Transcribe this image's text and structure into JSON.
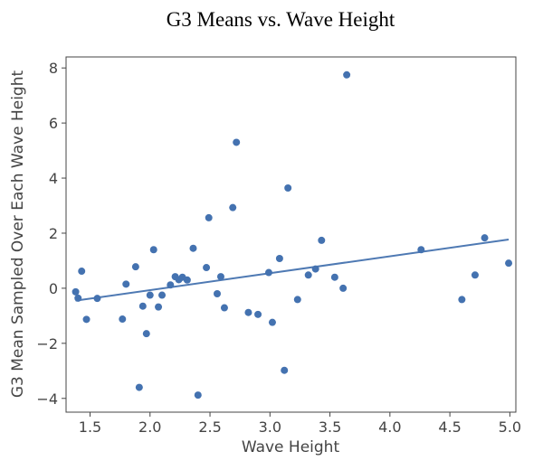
{
  "chart_data": {
    "type": "scatter",
    "title": "G3 Means vs. Wave Height",
    "xlabel": "Wave Height",
    "ylabel": "G3 Mean Sampled Over Each Wave Height",
    "xlim": [
      1.3,
      5.05
    ],
    "ylim": [
      -4.5,
      8.4
    ],
    "xticks": [
      1.5,
      2.0,
      2.5,
      3.0,
      3.5,
      4.0,
      4.5,
      5.0
    ],
    "xtick_labels": [
      "1.5",
      "2.0",
      "2.5",
      "3.0",
      "3.5",
      "4.0",
      "4.5",
      "5.0"
    ],
    "yticks": [
      -4,
      -2,
      0,
      2,
      4,
      6,
      8
    ],
    "ytick_labels": [
      "−4",
      "−2",
      "0",
      "2",
      "4",
      "6",
      "8"
    ],
    "grid": false,
    "point_color": "#4472b0",
    "trend_color": "#4e79b3",
    "series": [
      {
        "points": [
          {
            "x": 1.38,
            "y": -0.13
          },
          {
            "x": 1.4,
            "y": -0.36
          },
          {
            "x": 1.43,
            "y": 0.62
          },
          {
            "x": 1.47,
            "y": -1.13
          },
          {
            "x": 1.56,
            "y": -0.37
          },
          {
            "x": 1.77,
            "y": -1.12
          },
          {
            "x": 1.8,
            "y": 0.15
          },
          {
            "x": 1.88,
            "y": 0.78
          },
          {
            "x": 1.91,
            "y": -3.6
          },
          {
            "x": 1.94,
            "y": -0.65
          },
          {
            "x": 1.97,
            "y": -1.65
          },
          {
            "x": 2.0,
            "y": -0.25
          },
          {
            "x": 2.03,
            "y": 1.4
          },
          {
            "x": 2.07,
            "y": -0.68
          },
          {
            "x": 2.1,
            "y": -0.25
          },
          {
            "x": 2.17,
            "y": 0.12
          },
          {
            "x": 2.21,
            "y": 0.42
          },
          {
            "x": 2.24,
            "y": 0.31
          },
          {
            "x": 2.27,
            "y": 0.4
          },
          {
            "x": 2.31,
            "y": 0.3
          },
          {
            "x": 2.36,
            "y": 1.45
          },
          {
            "x": 2.4,
            "y": -3.88
          },
          {
            "x": 2.47,
            "y": 0.75
          },
          {
            "x": 2.49,
            "y": 2.56
          },
          {
            "x": 2.56,
            "y": -0.2
          },
          {
            "x": 2.59,
            "y": 0.42
          },
          {
            "x": 2.62,
            "y": -0.71
          },
          {
            "x": 2.69,
            "y": 2.93
          },
          {
            "x": 2.72,
            "y": 5.3
          },
          {
            "x": 2.82,
            "y": -0.88
          },
          {
            "x": 2.9,
            "y": -0.95
          },
          {
            "x": 2.99,
            "y": 0.57
          },
          {
            "x": 3.02,
            "y": -1.24
          },
          {
            "x": 3.08,
            "y": 1.08
          },
          {
            "x": 3.12,
            "y": -2.98
          },
          {
            "x": 3.15,
            "y": 3.64
          },
          {
            "x": 3.23,
            "y": -0.41
          },
          {
            "x": 3.32,
            "y": 0.48
          },
          {
            "x": 3.38,
            "y": 0.7
          },
          {
            "x": 3.43,
            "y": 1.74
          },
          {
            "x": 3.54,
            "y": 0.4
          },
          {
            "x": 3.61,
            "y": 0.0
          },
          {
            "x": 3.64,
            "y": 7.75
          },
          {
            "x": 4.26,
            "y": 1.4
          },
          {
            "x": 4.6,
            "y": -0.41
          },
          {
            "x": 4.71,
            "y": 0.48
          },
          {
            "x": 4.79,
            "y": 1.83
          },
          {
            "x": 4.99,
            "y": 0.91
          }
        ]
      }
    ],
    "trend_line": {
      "x": [
        1.38,
        4.99
      ],
      "y": [
        -0.45,
        1.77
      ]
    }
  }
}
